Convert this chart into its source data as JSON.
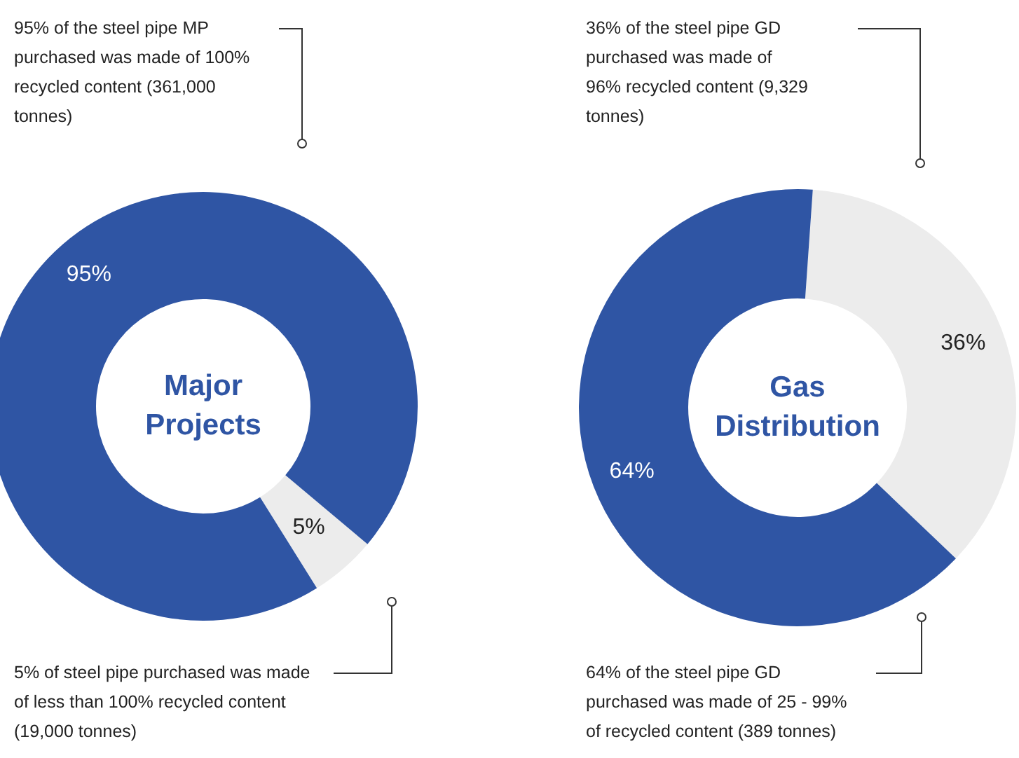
{
  "chart_data": [
    {
      "type": "donut",
      "title": "Major Projects",
      "categories": [
        null,
        null
      ],
      "values": [
        5,
        95
      ],
      "colors": [
        "#ececec",
        "#2f55a4"
      ],
      "value_labels": [
        "5%",
        "95%"
      ],
      "annotations": [
        "95% of the steel pipe MP purchased was made of 100% recycled content (361,000 tonnes)",
        "5% of steel pipe purchased was made of less than 100% recycled content (19,000 tonnes)"
      ]
    },
    {
      "type": "donut",
      "title": "Gas Distribution",
      "categories": [
        null,
        null
      ],
      "values": [
        36,
        64
      ],
      "colors": [
        "#ececec",
        "#2f55a4"
      ],
      "value_labels": [
        "36%",
        "64%"
      ],
      "annotations": [
        "36% of the steel pipe GD purchased was made of 96% recycled content (9,329 tonnes)",
        "64% of the steel pipe GD purchased was made of 25 - 99% of recycled content (389 tonnes)"
      ]
    }
  ]
}
